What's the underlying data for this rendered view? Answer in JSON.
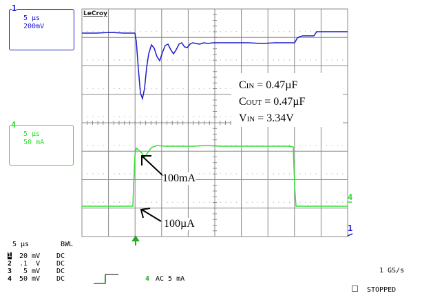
{
  "scope": {
    "brand": "LeCroy",
    "ch1_box": {
      "marker": "1",
      "timebase": "5 µs",
      "scale": "200mV"
    },
    "ch4_box": {
      "marker": "4",
      "timebase": "5 µs",
      "scale": "50 mA"
    },
    "annotations": {
      "cin_c": "C",
      "cin_sub": "IN",
      "cin_val": " = 0.47µF",
      "cout_c": "C",
      "cout_sub": "OUT",
      "cout_val": " = 0.47µF",
      "vin_v": "V",
      "vin_sub": "IN",
      "vin_val": " = 3.34V",
      "arrow_upper_label": "100mA",
      "arrow_lower_label": "100µA"
    },
    "edge_markers": {
      "ch4_right": "4",
      "ch1_right": "1"
    }
  },
  "status": {
    "timebase": "5 µs",
    "bwl": "BWL",
    "channels": [
      {
        "num": "1",
        "scale": "20 mV",
        "coupling": "DC"
      },
      {
        "num": "2",
        "scale": ".1  V",
        "coupling": "DC"
      },
      {
        "num": "3",
        "scale": " 5 mV",
        "coupling": "DC"
      },
      {
        "num": "4",
        "scale": "50 mV",
        "coupling": "DC"
      }
    ],
    "trigger_channel": "4",
    "trigger_coupling": "AC 5 mA",
    "sample_rate": "1 GS/s",
    "run_state": "STOPPED"
  },
  "colors": {
    "ch1": "#1a1acc",
    "ch4": "#33dd33",
    "grid": "#888888",
    "trigger": "#22aa22"
  }
}
